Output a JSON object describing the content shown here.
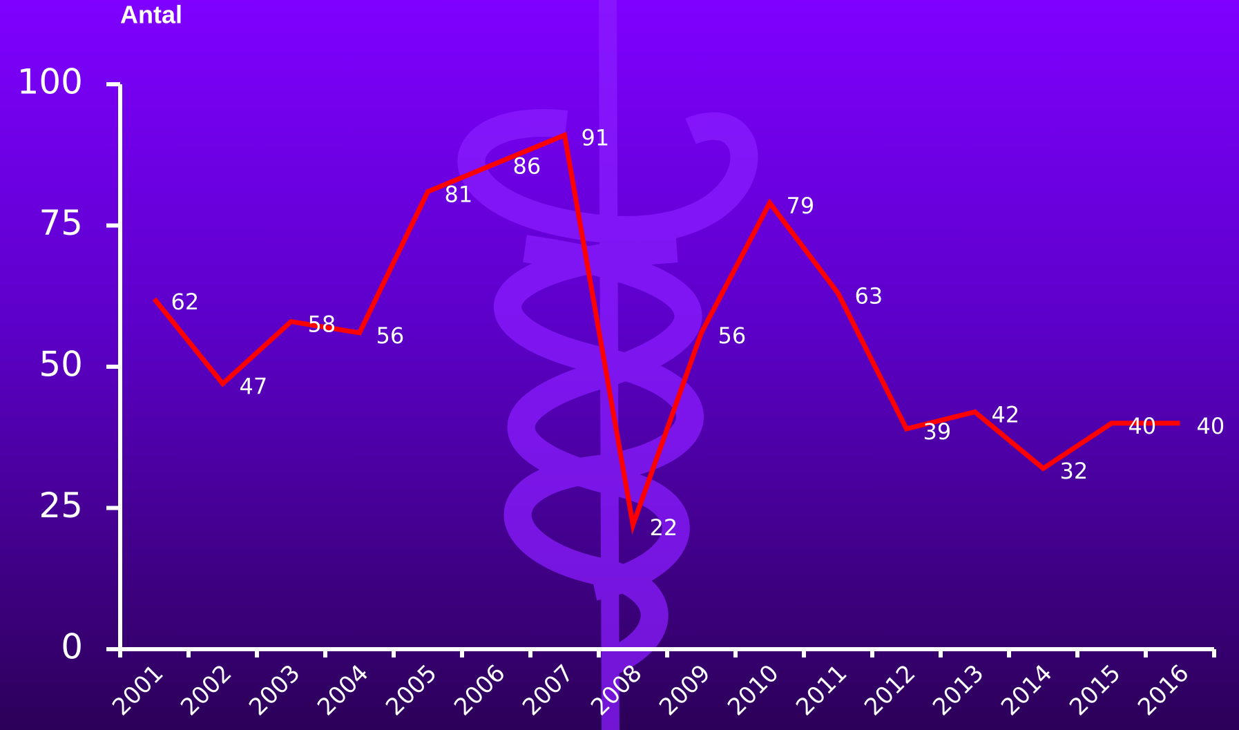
{
  "chart_data": {
    "type": "line",
    "y_axis_label": "Antal",
    "categories": [
      "2001",
      "2002",
      "2003",
      "2004",
      "2005",
      "2006",
      "2007",
      "2008",
      "2009",
      "2010",
      "2011",
      "2012",
      "2013",
      "2014",
      "2015",
      "2016"
    ],
    "values": [
      62,
      47,
      58,
      56,
      81,
      86,
      91,
      22,
      56,
      79,
      63,
      39,
      42,
      32,
      40,
      40
    ],
    "color": "#ff0000",
    "ylim": [
      0,
      100
    ],
    "yticks": [
      0,
      25,
      50,
      75,
      100
    ],
    "grid": false,
    "data_labels": true
  }
}
